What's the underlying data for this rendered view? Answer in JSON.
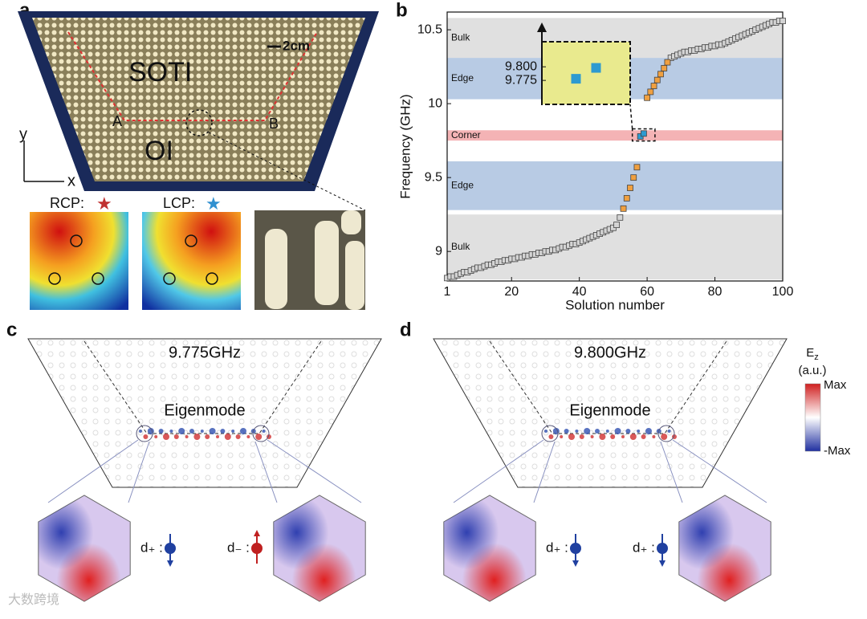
{
  "panel_labels": [
    "a",
    "b",
    "c",
    "d"
  ],
  "panel_a": {
    "top_region": "SOTI",
    "bottom_region": "OI",
    "point_a": "A",
    "point_b": "B",
    "scale": "2cm",
    "axis_y": "y",
    "axis_x": "x",
    "rcp": "RCP:",
    "lcp": "LCP:"
  },
  "chart_data": {
    "type": "scatter",
    "xlabel": "Solution number",
    "ylabel": "Frequency (GHz)",
    "xlim": [
      1,
      100
    ],
    "ylim": [
      8.8,
      10.62
    ],
    "xticks": [
      1,
      20,
      40,
      60,
      80,
      100
    ],
    "yticks": [
      9,
      9.5,
      10,
      10.5
    ],
    "bands": [
      {
        "label": "Bulk",
        "range": [
          8.81,
          9.25
        ],
        "color": "#e0e0e0"
      },
      {
        "label": "Edge",
        "range": [
          9.28,
          9.61
        ],
        "color": "#b8cbe4"
      },
      {
        "label": "Corner",
        "range": [
          9.75,
          9.82
        ],
        "color": "#f4b3b5"
      },
      {
        "label": "Edge",
        "range": [
          10.03,
          10.31
        ],
        "color": "#b8cbe4"
      },
      {
        "label": "Bulk",
        "range": [
          10.31,
          10.58
        ],
        "color": "#e0e0e0"
      }
    ],
    "series": [
      {
        "color": "#d4d4d4",
        "x": [
          1,
          2,
          3,
          4,
          5,
          6,
          7,
          8,
          9,
          10,
          11,
          12,
          13,
          14,
          15,
          16,
          17,
          18,
          19,
          20,
          21,
          22,
          23,
          24,
          25,
          26,
          27,
          28,
          29,
          30,
          31,
          32,
          33,
          34,
          35,
          36,
          37,
          38,
          39,
          40,
          41,
          42,
          43,
          44,
          45,
          46,
          47,
          48,
          49,
          50,
          51,
          52,
          67,
          68,
          69,
          70,
          71,
          72,
          73,
          74,
          75,
          76,
          77,
          78,
          79,
          80,
          81,
          82,
          83,
          84,
          85,
          86,
          87,
          88,
          89,
          90,
          91,
          92,
          93,
          94,
          95,
          96,
          97,
          98,
          99,
          100
        ],
        "values": [
          8.82,
          8.83,
          8.83,
          8.84,
          8.85,
          8.86,
          8.86,
          8.87,
          8.88,
          8.89,
          8.89,
          8.9,
          8.91,
          8.91,
          8.92,
          8.93,
          8.93,
          8.94,
          8.94,
          8.95,
          8.95,
          8.96,
          8.96,
          8.97,
          8.97,
          8.98,
          8.98,
          8.99,
          8.99,
          9.0,
          9.0,
          9.01,
          9.01,
          9.02,
          9.03,
          9.03,
          9.04,
          9.05,
          9.05,
          9.06,
          9.07,
          9.08,
          9.09,
          9.1,
          9.11,
          9.12,
          9.13,
          9.14,
          9.15,
          9.16,
          9.18,
          9.23,
          10.31,
          10.32,
          10.33,
          10.34,
          10.35,
          10.35,
          10.36,
          10.36,
          10.37,
          10.37,
          10.38,
          10.38,
          10.39,
          10.39,
          10.4,
          10.4,
          10.41,
          10.42,
          10.43,
          10.44,
          10.45,
          10.46,
          10.47,
          10.48,
          10.49,
          10.5,
          10.51,
          10.52,
          10.53,
          10.54,
          10.55,
          10.55,
          10.56,
          10.56
        ]
      },
      {
        "color": "#f0a040",
        "x": [
          53,
          54,
          55,
          56,
          57,
          60,
          61,
          62,
          63,
          64,
          65,
          66
        ],
        "values": [
          9.29,
          9.36,
          9.43,
          9.5,
          9.57,
          10.04,
          10.08,
          10.12,
          10.16,
          10.2,
          10.24,
          10.28
        ]
      },
      {
        "color": "#2e9ad0",
        "x": [
          58,
          59
        ],
        "values": [
          9.778,
          9.798
        ]
      }
    ],
    "inset": {
      "xlim": [
        56.3,
        60.7
      ],
      "ylim": [
        9.731,
        9.846
      ],
      "yticks": [
        {
          "value": 9.8,
          "label": "9.800"
        },
        {
          "value": 9.775,
          "label": "9.775"
        }
      ],
      "color": "#e9ea8e"
    }
  },
  "panel_c": {
    "frequency": "9.775GHz",
    "mode": "Eigenmode",
    "left_spin": "d₊ :",
    "right_spin": "d₋ :"
  },
  "panel_d": {
    "frequency": "9.800GHz",
    "mode": "Eigenmode",
    "left_spin": "d₊ :",
    "right_spin": "d₊ :"
  },
  "colorbar": {
    "symbol": "E",
    "subscript": "z",
    "unit": "(a.u.)",
    "max": "Max",
    "min": "-Max"
  },
  "watermark": "大数跨境"
}
